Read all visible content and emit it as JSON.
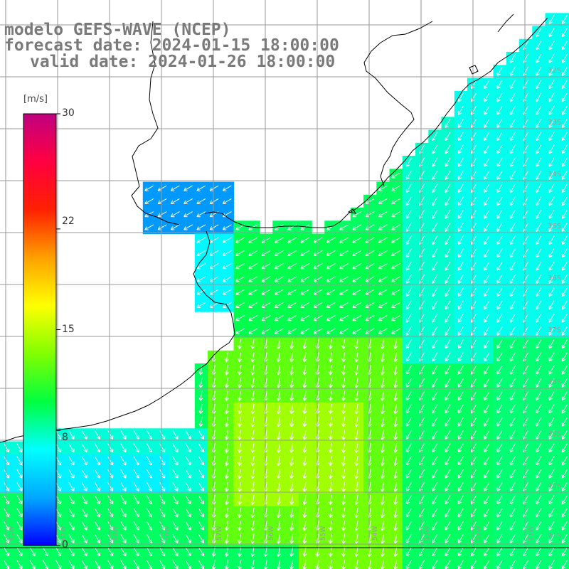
{
  "header": {
    "model": "modelo GEFS-WAVE (NCEP)",
    "forecast_date": "forecast date: 2024-01-15 18:00:00",
    "valid_date": "valid date: 2024-01-26 18:00:00"
  },
  "colorbar": {
    "unit": "[m/s]",
    "ticks": [
      "30",
      "22",
      "15",
      "8",
      "0"
    ],
    "tick_values": [
      30,
      22,
      15,
      8,
      0
    ],
    "range": [
      0,
      30
    ],
    "colors": [
      "#0000ff",
      "#00a8ff",
      "#00ffff",
      "#00ff40",
      "#80ff00",
      "#ffff00",
      "#ffa000",
      "#ff2000",
      "#ff0040",
      "#c00080"
    ]
  },
  "lat_labels": [
    "32S",
    "33S",
    "34S",
    "35S",
    "36S",
    "37S",
    "38S",
    "39S",
    "40S",
    "41S"
  ],
  "lat_values": [
    -32,
    -33,
    -34,
    -35,
    -36,
    -37,
    -38,
    -39,
    -40,
    -41
  ],
  "lon_labels": [
    "61W",
    "60W",
    "59W",
    "58W",
    "57W",
    "56W",
    "55W",
    "54W",
    "53W",
    "52W",
    "51W"
  ],
  "lon_values": [
    -61,
    -60,
    -59,
    -58,
    -57,
    -56,
    -55,
    -54,
    -53,
    -52,
    -51
  ],
  "colors": {
    "land": "#ffffff",
    "grid": "#9a9a9a",
    "coast": "#000000",
    "arrow": "#ffffff",
    "title": "#7a7a7a"
  }
}
